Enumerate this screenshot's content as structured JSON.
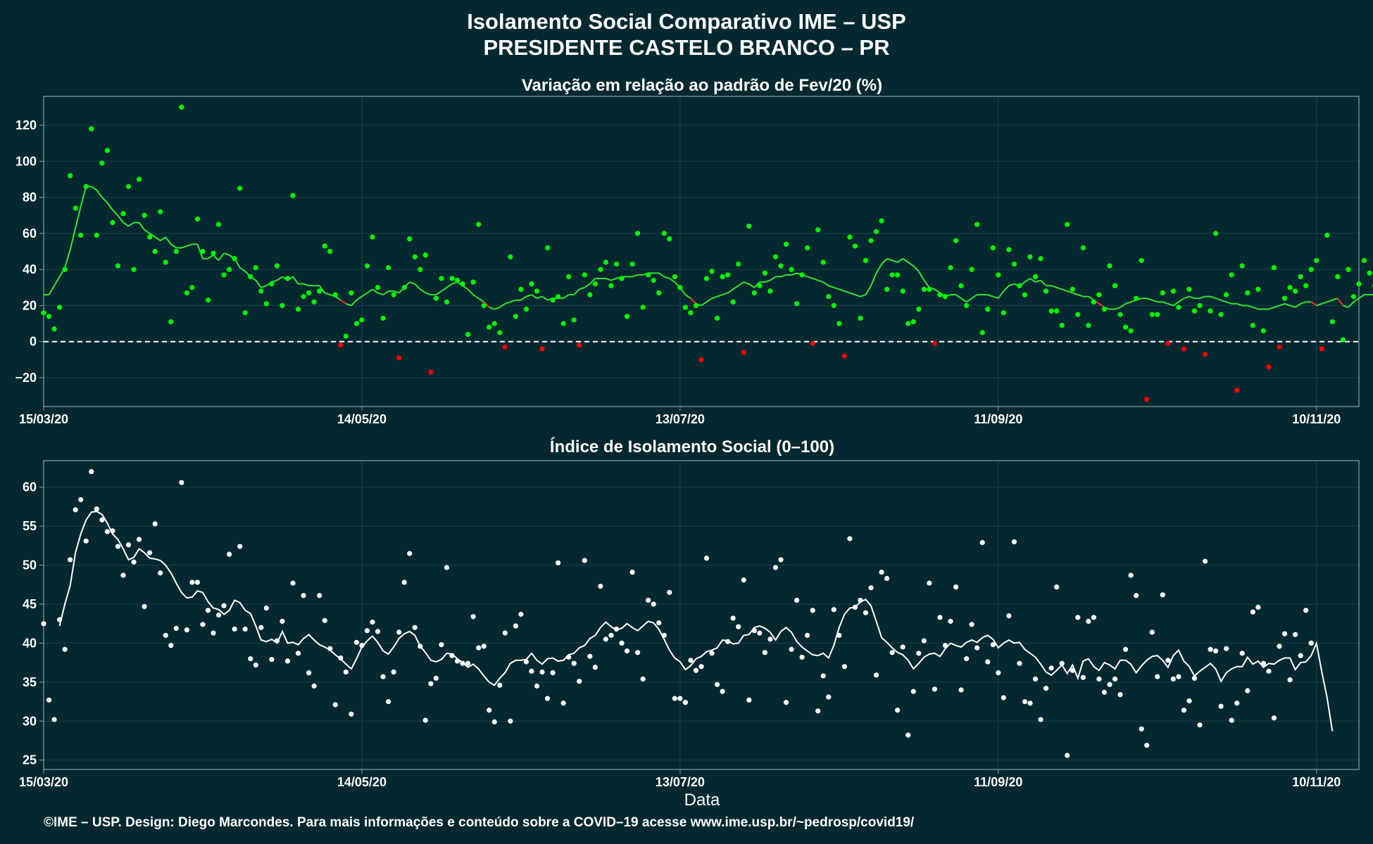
{
  "title": {
    "line1": "Isolamento Social Comparativo IME – USP",
    "line2": "PRESIDENTE CASTELO BRANCO – PR"
  },
  "footer": "©IME – USP. Design: Diego Marcondes. Para mais informações e conteúdo sobre a COVID–19 acesse www.ime.usp.br/~pedrosp/covid19/",
  "colors": {
    "background": "#03282f",
    "positive_point": "#00ff00",
    "negative_point": "#ff0000",
    "avg_line_positive": "#32e632",
    "avg_line_negative": "#ff3030",
    "index_point": "#ffffff",
    "index_line": "#ffffff",
    "panel_border": "#8aa0a4",
    "grid": "#16434c"
  },
  "chart_data": [
    {
      "type": "scatter",
      "title": "Variação em relação ao padrão de Fev/20 (%)",
      "xlabel": "",
      "ylabel": "",
      "start_date": "15/03/20",
      "x_ticks": [
        "15/03/20",
        "14/05/20",
        "13/07/20",
        "11/09/20",
        "10/11/20"
      ],
      "x_tick_days": [
        0,
        60,
        120,
        180,
        240
      ],
      "y_ticks": [
        -20,
        0,
        20,
        40,
        60,
        80,
        100,
        120
      ],
      "ylim": [
        -36,
        136
      ],
      "xlim_days": [
        0,
        248
      ],
      "reference_line": 0,
      "grid": true,
      "series": [
        {
          "name": "Variação diária",
          "values": [
            16,
            14,
            7,
            19,
            40,
            92,
            74,
            59,
            86,
            118,
            59,
            99,
            106,
            66,
            42,
            71,
            86,
            40,
            90,
            70,
            58,
            50,
            72,
            44,
            11,
            50,
            130,
            27,
            30,
            68,
            50,
            23,
            49,
            65,
            37,
            40,
            46,
            85,
            16,
            36,
            41,
            28,
            21,
            32,
            42,
            20,
            35,
            81,
            18,
            25,
            27,
            22,
            28,
            53,
            50,
            26,
            -2,
            3,
            27,
            10,
            12,
            42,
            58,
            30,
            13,
            41,
            26,
            -9,
            30,
            57,
            47,
            40,
            48,
            -17,
            24,
            35,
            22,
            35,
            34,
            32,
            4,
            33,
            65,
            20,
            8,
            10,
            5,
            -3,
            47,
            14,
            29,
            18,
            32,
            28,
            -4,
            52,
            23,
            25,
            10,
            36,
            12,
            -2,
            37,
            26,
            32,
            40,
            44,
            31,
            43,
            35,
            14,
            43,
            60,
            19,
            37,
            34,
            27,
            60,
            57,
            36,
            30,
            19,
            16,
            20,
            -10,
            35,
            39,
            13,
            36,
            37,
            22,
            43,
            -6,
            64,
            27,
            31,
            38,
            28,
            47,
            42,
            54,
            40,
            21,
            37,
            52,
            -1,
            62,
            44,
            25,
            20,
            10,
            -8,
            58,
            53,
            13,
            45,
            56,
            61,
            67,
            29,
            37,
            37,
            28,
            10,
            11,
            18,
            29,
            29,
            -1,
            26,
            25,
            41,
            56,
            31,
            20,
            40,
            65,
            5,
            18,
            52,
            37,
            16,
            51,
            43,
            31,
            26,
            47,
            36,
            46,
            28,
            17,
            17,
            9,
            65,
            29,
            15,
            52,
            9,
            22,
            26,
            18,
            42,
            31,
            15,
            8,
            6,
            24,
            45,
            -32,
            15,
            15,
            27,
            -1,
            28,
            19,
            -4,
            29,
            17,
            20,
            -7,
            17,
            60,
            15,
            26,
            37,
            -27,
            42,
            27,
            9,
            29,
            6,
            -14,
            41,
            -3,
            24,
            30,
            28,
            36,
            31,
            40,
            45,
            -4,
            59,
            11,
            36,
            1,
            40,
            25,
            32,
            45,
            38,
            31
          ]
        },
        {
          "name": "Média móvel",
          "values": [
            26,
            26,
            31,
            36,
            41,
            51,
            63,
            75,
            86,
            86,
            84,
            80,
            77,
            73,
            70,
            66,
            64,
            66,
            66,
            62,
            60,
            58,
            56,
            58,
            54,
            52,
            52,
            53,
            54,
            54,
            46,
            46,
            48,
            45,
            49,
            48,
            46,
            41,
            39,
            36,
            34,
            30,
            31,
            33,
            34,
            36,
            34,
            36,
            32,
            32,
            31,
            31,
            31,
            27,
            26,
            25,
            23,
            21,
            20,
            23,
            25,
            27,
            29,
            27,
            26,
            28,
            28,
            27,
            30,
            33,
            32,
            29,
            27,
            26,
            26,
            28,
            30,
            32,
            33,
            31,
            29,
            26,
            24,
            22,
            19,
            18,
            19,
            21,
            22,
            23,
            23,
            25,
            26,
            24,
            25,
            23,
            24,
            24,
            24,
            26,
            26,
            29,
            30,
            32,
            35,
            35,
            35,
            34,
            35,
            36,
            36,
            36,
            37,
            37,
            38,
            38,
            38,
            36,
            35,
            33,
            30,
            26,
            24,
            21,
            20,
            22,
            24,
            25,
            26,
            27,
            29,
            31,
            33,
            32,
            30,
            33,
            33,
            34,
            36,
            36,
            37,
            37,
            38,
            37,
            36,
            35,
            34,
            33,
            31,
            30,
            29,
            28,
            27,
            26,
            25,
            26,
            31,
            38,
            43,
            46,
            45,
            44,
            46,
            44,
            42,
            39,
            34,
            30,
            29,
            27,
            25,
            26,
            26,
            24,
            22,
            24,
            26,
            26,
            26,
            25,
            24,
            28,
            31,
            32,
            31,
            33,
            35,
            33,
            34,
            31,
            31,
            30,
            29,
            28,
            27,
            26,
            25,
            25,
            23,
            21,
            19,
            18,
            18,
            19,
            21,
            22,
            23,
            24,
            24,
            23,
            22,
            22,
            21,
            20,
            22,
            24,
            25,
            24,
            24,
            25,
            25,
            24,
            23,
            22,
            21,
            21,
            20,
            20,
            19,
            18,
            18,
            18,
            19,
            20,
            21,
            20,
            19,
            21,
            22,
            22,
            20,
            21,
            22,
            23,
            24,
            20,
            19,
            22,
            24,
            26,
            26,
            26
          ]
        }
      ]
    },
    {
      "type": "scatter",
      "title": "Índice de Isolamento Social (0–100)",
      "xlabel": "Data",
      "ylabel": "",
      "start_date": "15/03/20",
      "x_ticks": [
        "15/03/20",
        "14/05/20",
        "13/07/20",
        "11/09/20",
        "10/11/20"
      ],
      "x_tick_days": [
        0,
        60,
        120,
        180,
        240
      ],
      "y_ticks": [
        25,
        30,
        35,
        40,
        45,
        50,
        55,
        60
      ],
      "ylim": [
        23.8,
        63.4
      ],
      "xlim_days": [
        0,
        248
      ],
      "grid": true,
      "series": [
        {
          "name": "Índice diário",
          "values": [
            42.5,
            32.7,
            30.2,
            43.0,
            39.2,
            50.7,
            57.1,
            58.4,
            53.1,
            62.0,
            57.2,
            55.8,
            54.3,
            54.4,
            52.4,
            48.7,
            52.6,
            50.4,
            53.3,
            44.7,
            51.6,
            55.3,
            49.0,
            41.0,
            39.7,
            41.9,
            60.6,
            41.7,
            47.8,
            47.8,
            42.4,
            44.2,
            41.3,
            43.6,
            44.8,
            51.4,
            41.8,
            52.4,
            41.8,
            38.0,
            37.2,
            42.0,
            44.5,
            37.9,
            40.3,
            42.8,
            37.7,
            47.7,
            38.7,
            46.1,
            36.2,
            34.5,
            46.1,
            42.9,
            39.3,
            32.1,
            38.1,
            36.3,
            30.9,
            40.1,
            39.7,
            41.6,
            42.7,
            41.5,
            35.7,
            32.5,
            36.3,
            41.4,
            47.8,
            51.5,
            42.0,
            39.6,
            30.1,
            34.8,
            35.5,
            39.8,
            49.7,
            38.4,
            37.7,
            37.4,
            37.4,
            43.4,
            39.4,
            39.6,
            31.4,
            29.9,
            34.6,
            41.3,
            30.0,
            42.2,
            43.7,
            37.6,
            36.4,
            34.5,
            36.3,
            32.9,
            36.2,
            50.3,
            32.3,
            38.2,
            37.4,
            35.1,
            50.6,
            38.3,
            36.9,
            47.3,
            40.5,
            41.0,
            41.8,
            40.0,
            39.0,
            49.1,
            38.8,
            35.4,
            45.5,
            45.0,
            42.6,
            41.0,
            46.5,
            32.9,
            32.9,
            32.4,
            37.8,
            36.5,
            37.0,
            50.9,
            38.7,
            34.7,
            33.8,
            40.2,
            43.2,
            42.1,
            48.1,
            32.7,
            41.6,
            41.3,
            38.8,
            40.5,
            49.7,
            50.7,
            32.4,
            39.2,
            45.5,
            38.2,
            41.0,
            44.2,
            31.3,
            35.8,
            33.1,
            44.3,
            41.0,
            37.0,
            53.4,
            44.6,
            45.5,
            43.9,
            47.1,
            35.9,
            49.1,
            48.3,
            38.8,
            31.4,
            39.5,
            28.2,
            33.8,
            38.7,
            40.3,
            47.7,
            34.1,
            43.3,
            39.7,
            42.8,
            47.2,
            34.0,
            38.0,
            42.4,
            39.4,
            52.9,
            37.6,
            39.8,
            36.2,
            33.0,
            43.5,
            53.0,
            37.4,
            32.5,
            32.3,
            35.4,
            30.2,
            34.2,
            36.8,
            47.2,
            37.4,
            25.6,
            36.5,
            43.3,
            35.6,
            42.8,
            43.3,
            35.4,
            33.7,
            34.7,
            35.4,
            33.4,
            39.2,
            48.7,
            46.1,
            29.0,
            26.9,
            41.4,
            35.7,
            46.2,
            37.8,
            35.4,
            35.7,
            31.4,
            32.6,
            35.5,
            29.5,
            50.5,
            39.2,
            39.0,
            31.9,
            39.3,
            30.1,
            32.3,
            38.7,
            33.9,
            44.0,
            44.6,
            37.4,
            36.4,
            30.4,
            39.6,
            41.2,
            35.3,
            41.1,
            38.4,
            44.2,
            40.0
          ]
        },
        {
          "name": "Média móvel",
          "values": [
            null,
            null,
            null,
            42.2,
            45.0,
            47.4,
            51.6,
            54.0,
            55.8,
            56.8,
            56.9,
            56.5,
            55.4,
            54.0,
            53.3,
            52.1,
            50.7,
            51.0,
            52.1,
            51.6,
            50.9,
            50.8,
            50.6,
            50.0,
            49.0,
            47.7,
            46.5,
            45.8,
            45.9,
            46.7,
            46.5,
            45.3,
            44.5,
            44.3,
            43.7,
            44.2,
            45.5,
            45.2,
            44.2,
            43.8,
            42.2,
            40.4,
            40.2,
            40.5,
            40.0,
            41.5,
            40.0,
            40.1,
            39.8,
            40.6,
            41.1,
            40.4,
            39.8,
            39.5,
            39.1,
            38.5,
            38.0,
            37.3,
            36.7,
            38.0,
            39.5,
            40.3,
            40.9,
            40.1,
            39.0,
            38.6,
            39.5,
            40.6,
            41.2,
            41.5,
            41.0,
            39.6,
            38.8,
            37.8,
            37.6,
            37.9,
            38.7,
            38.6,
            38.0,
            37.5,
            36.9,
            37.3,
            36.7,
            35.8,
            35.0,
            34.6,
            35.5,
            36.2,
            37.4,
            37.8,
            37.8,
            37.9,
            38.7,
            37.8,
            37.3,
            38.0,
            38.1,
            37.7,
            37.8,
            38.5,
            38.7,
            39.4,
            39.7,
            40.6,
            41.0,
            42.0,
            42.7,
            42.1,
            41.7,
            41.9,
            42.5,
            42.0,
            41.6,
            42.2,
            42.8,
            42.6,
            41.8,
            40.5,
            39.1,
            38.1,
            37.6,
            36.6,
            37.1,
            38.0,
            38.3,
            38.9,
            39.1,
            39.4,
            40.4,
            40.3,
            39.9,
            40.0,
            41.0,
            41.1,
            42.0,
            42.2,
            41.9,
            41.4,
            40.4,
            41.5,
            42.0,
            41.4,
            40.2,
            39.5,
            39.0,
            38.5,
            38.4,
            38.7,
            38.1,
            39.7,
            42.0,
            43.7,
            44.5,
            44.6,
            45.3,
            45.6,
            44.8,
            42.8,
            40.7,
            40.1,
            39.4,
            38.8,
            38.5,
            37.8,
            36.7,
            37.4,
            38.2,
            38.6,
            38.7,
            38.3,
            39.3,
            40.0,
            39.7,
            39.5,
            40.1,
            40.4,
            40.1,
            40.7,
            41.0,
            40.5,
            39.4,
            40.0,
            40.4,
            40.0,
            40.1,
            39.2,
            38.7,
            38.2,
            37.3,
            36.3,
            35.9,
            36.5,
            37.2,
            36.1,
            37.2,
            35.5,
            37.7,
            38.0,
            37.0,
            36.5,
            37.5,
            37.2,
            36.7,
            37.8,
            37.8,
            37.3,
            36.2,
            37.1,
            37.8,
            38.3,
            38.4,
            37.8,
            36.9,
            38.4,
            39.1,
            37.7,
            37.0,
            35.8,
            36.4,
            36.9,
            37.4,
            36.7,
            35.1,
            36.2,
            36.7,
            37.0,
            37.0,
            38.2,
            37.3,
            37.7,
            36.9,
            37.4,
            37.3,
            37.8,
            38.1,
            38.1,
            36.6,
            37.5,
            37.6,
            38.4,
            40.0,
            36.3,
            33.0,
            28.7
          ]
        }
      ]
    }
  ]
}
